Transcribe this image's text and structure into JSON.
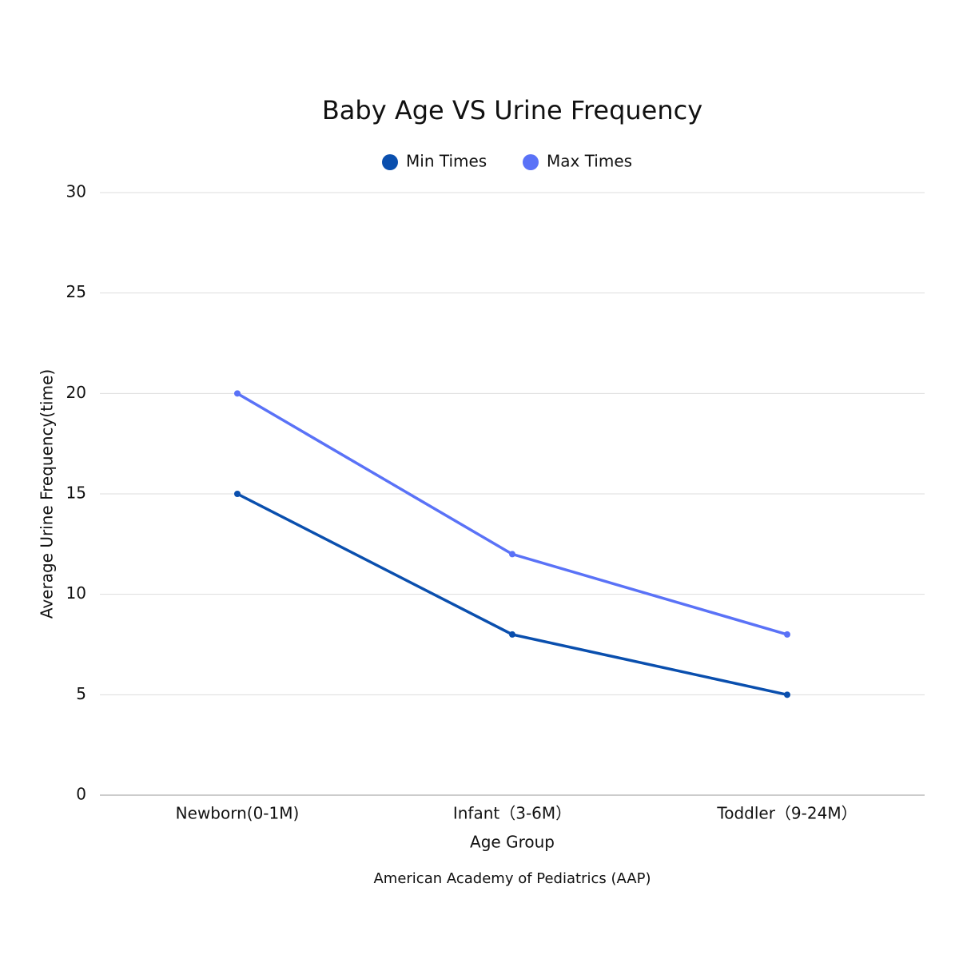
{
  "chart_data": {
    "type": "line",
    "title": "Baby Age VS Urine Frequency",
    "x_label": "Age Group",
    "y_label": "Average Urine Frequency(time)",
    "source": "American Academy of Pediatrics (AAP)",
    "categories": [
      "Newborn(0-1M)",
      "Infant（3-6M）",
      "Toddler（9-24M）"
    ],
    "series": [
      {
        "name": "Min Times",
        "color": "#0a4fae",
        "values": [
          15,
          8,
          5
        ]
      },
      {
        "name": "Max Times",
        "color": "#5a72f7",
        "values": [
          20,
          12,
          8
        ]
      }
    ],
    "ylim": [
      0,
      30
    ],
    "yticks": [
      0,
      5,
      10,
      15,
      20,
      25,
      30
    ],
    "grid": true,
    "legend": "top"
  }
}
